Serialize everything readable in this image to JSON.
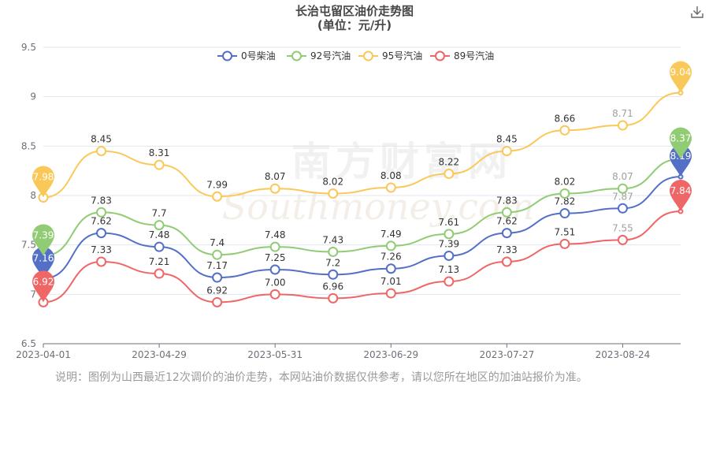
{
  "header": {
    "title": "长治屯留区油价走势图",
    "subtitle": "(单位：元/升)"
  },
  "toolbar": {
    "download_icon": "download-icon"
  },
  "note": "说明：图例为山西最近12次调价的油价走势，本网站油价数据仅供参考，请以您所在地区的加油站报价为准。",
  "watermark": {
    "text": "南方财富网",
    "subtext": "Southmoney.com"
  },
  "chart_data": {
    "type": "line",
    "title": "长治屯留区油价走势图",
    "subtitle": "(单位：元/升)",
    "xlabel": "",
    "ylabel": "",
    "ylim": [
      6.5,
      9.5
    ],
    "yticks": [
      "6.5",
      "7",
      "7.5",
      "8",
      "8.5",
      "9",
      "9.5"
    ],
    "xtick_labels": [
      "2023-04-01",
      "2023-04-29",
      "2023-05-31",
      "2023-06-29",
      "2023-07-27",
      "2023-08-24"
    ],
    "grid": true,
    "legend_position": "top-center",
    "series": [
      {
        "name": "0号柴油",
        "color": "#5470c6",
        "values": [
          7.16,
          7.62,
          7.48,
          7.17,
          7.25,
          7.2,
          7.26,
          7.39,
          7.62,
          7.82,
          7.87,
          8.19
        ],
        "labels": [
          "7.16",
          "7.62",
          "7.48",
          "7.17",
          "7.25",
          "7.2",
          "7.26",
          "7.39",
          "7.62",
          "7.82",
          "7.87",
          "8.19"
        ]
      },
      {
        "name": "92号汽油",
        "color": "#91cc75",
        "values": [
          7.39,
          7.83,
          7.7,
          7.4,
          7.48,
          7.43,
          7.49,
          7.61,
          7.83,
          8.02,
          8.07,
          8.37
        ],
        "labels": [
          "7.39",
          "7.83",
          "7.7",
          "7.4",
          "7.48",
          "7.43",
          "7.49",
          "7.61",
          "7.83",
          "8.02",
          "8.07",
          "8.37"
        ]
      },
      {
        "name": "95号汽油",
        "color": "#fac858",
        "values": [
          7.98,
          8.45,
          8.31,
          7.99,
          8.07,
          8.02,
          8.08,
          8.22,
          8.45,
          8.66,
          8.71,
          9.04
        ],
        "labels": [
          "7.98",
          "8.45",
          "8.31",
          "7.99",
          "8.07",
          "8.02",
          "8.08",
          "8.22",
          "8.45",
          "8.66",
          "8.71",
          "9.04"
        ]
      },
      {
        "name": "89号汽油",
        "color": "#ee6666",
        "values": [
          6.92,
          7.33,
          7.21,
          6.92,
          7.0,
          6.96,
          7.01,
          7.13,
          7.33,
          7.51,
          7.55,
          7.84
        ],
        "labels": [
          "6.92",
          "7.33",
          "7.21",
          "6.92",
          "7.00",
          "6.96",
          "7.01",
          "7.13",
          "7.33",
          "7.51",
          "7.55",
          "7.84"
        ]
      }
    ],
    "markers": {
      "min_pin": "first",
      "max_pin": "last"
    }
  }
}
